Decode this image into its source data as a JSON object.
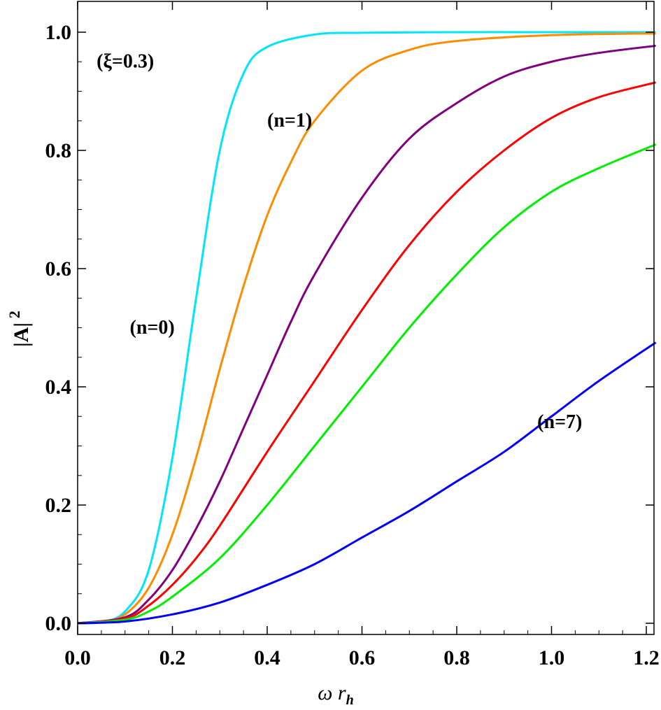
{
  "chart_data": {
    "type": "line",
    "title": "",
    "xlabel": "ω r",
    "xlabel_sub": "h",
    "ylabel": "|A|",
    "ylabel_sup": "2",
    "xlim": [
      0,
      1.22
    ],
    "ylim": [
      -0.02,
      1.05
    ],
    "grid": false,
    "x_ticks": [
      "0.0",
      "0.2",
      "0.4",
      "0.6",
      "0.8",
      "1.0",
      "1.2"
    ],
    "y_ticks": [
      "0.0",
      "0.2",
      "0.4",
      "0.6",
      "0.8",
      "1.0"
    ],
    "annotations": [
      {
        "text": "(ξ=0.3)",
        "x": 0.04,
        "y": 0.94
      },
      {
        "text": "(n=1)",
        "x": 0.4,
        "y": 0.84
      },
      {
        "text": "(n=0)",
        "x": 0.11,
        "y": 0.49
      },
      {
        "text": "(n=7)",
        "x": 0.97,
        "y": 0.33
      }
    ],
    "series": [
      {
        "color": "#00e5ff",
        "x": [
          0,
          0.05,
          0.1,
          0.15,
          0.2,
          0.25,
          0.3,
          0.35,
          0.4,
          0.5,
          0.6,
          0.8,
          1.0,
          1.22
        ],
        "y": [
          0,
          0.002,
          0.02,
          0.09,
          0.28,
          0.55,
          0.8,
          0.93,
          0.975,
          0.996,
          0.999,
          1,
          1,
          1
        ]
      },
      {
        "color": "#ff8c00",
        "x": [
          0,
          0.05,
          0.1,
          0.15,
          0.2,
          0.25,
          0.3,
          0.35,
          0.4,
          0.45,
          0.5,
          0.6,
          0.7,
          0.8,
          1.0,
          1.22
        ],
        "y": [
          0,
          0.002,
          0.015,
          0.06,
          0.15,
          0.28,
          0.43,
          0.57,
          0.69,
          0.78,
          0.85,
          0.935,
          0.97,
          0.985,
          0.995,
          0.998
        ]
      },
      {
        "color": "#800080",
        "x": [
          0,
          0.1,
          0.15,
          0.2,
          0.25,
          0.3,
          0.35,
          0.4,
          0.45,
          0.5,
          0.6,
          0.7,
          0.8,
          0.9,
          1.0,
          1.1,
          1.22
        ],
        "y": [
          0,
          0.01,
          0.04,
          0.09,
          0.16,
          0.24,
          0.33,
          0.42,
          0.51,
          0.59,
          0.72,
          0.82,
          0.88,
          0.925,
          0.95,
          0.965,
          0.977
        ]
      },
      {
        "color": "#ff0000",
        "x": [
          0,
          0.1,
          0.15,
          0.2,
          0.25,
          0.3,
          0.4,
          0.5,
          0.6,
          0.7,
          0.8,
          0.9,
          1.0,
          1.1,
          1.22
        ],
        "y": [
          0,
          0.008,
          0.03,
          0.065,
          0.11,
          0.165,
          0.29,
          0.41,
          0.53,
          0.64,
          0.73,
          0.8,
          0.855,
          0.89,
          0.915
        ]
      },
      {
        "color": "#00ee00",
        "x": [
          0,
          0.1,
          0.15,
          0.2,
          0.3,
          0.4,
          0.5,
          0.6,
          0.7,
          0.8,
          0.9,
          1.0,
          1.1,
          1.22
        ],
        "y": [
          0,
          0.006,
          0.02,
          0.045,
          0.11,
          0.2,
          0.3,
          0.4,
          0.5,
          0.59,
          0.67,
          0.73,
          0.77,
          0.81
        ]
      },
      {
        "color": "#0000ff",
        "x": [
          0,
          0.1,
          0.2,
          0.3,
          0.4,
          0.5,
          0.6,
          0.7,
          0.8,
          0.9,
          1.0,
          1.1,
          1.22
        ],
        "y": [
          0,
          0.003,
          0.015,
          0.035,
          0.065,
          0.1,
          0.145,
          0.19,
          0.24,
          0.29,
          0.35,
          0.41,
          0.475
        ]
      }
    ]
  }
}
